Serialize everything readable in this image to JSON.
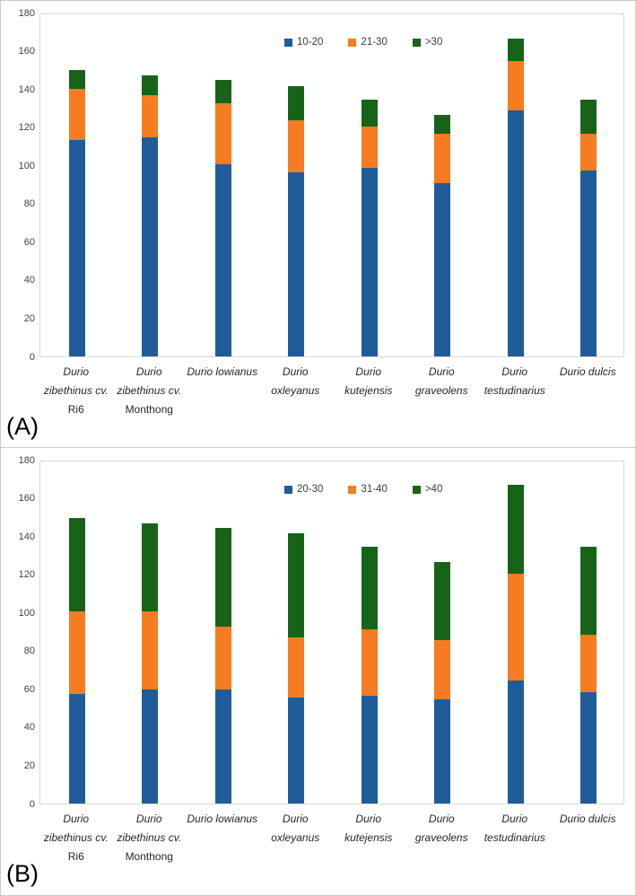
{
  "colors": {
    "series_blue": "#1f5c99",
    "series_orange": "#f57c21",
    "series_green": "#176418",
    "plot_border": "#d9d9d9",
    "outer_border": "#c9c9c9",
    "tick_text": "#404040",
    "category_text": "#262626"
  },
  "chart_data": [
    {
      "type": "bar",
      "stacked": true,
      "panel_label": "(A)",
      "title": "",
      "xlabel": "",
      "ylabel": "",
      "ylim": [
        0,
        180
      ],
      "ytick_step": 20,
      "grid": false,
      "legend_position": "inside-top-center",
      "categories": [
        "Durio zibethinus cv. Ri6",
        "Durio zibethinus cv. Monthong",
        "Durio lowianus",
        "Durio oxleyanus",
        "Durio kutejensis",
        "Durio graveolens",
        "Durio testudinarius",
        "Durio dulcis"
      ],
      "category_label_lines": [
        [
          {
            "text": "Durio",
            "italic": true
          },
          {
            "text": "zibethinus cv.",
            "italic": true
          },
          {
            "text": "Ri6",
            "italic": false
          }
        ],
        [
          {
            "text": "Durio",
            "italic": true
          },
          {
            "text": "zibethinus cv.",
            "italic": true
          },
          {
            "text": "Monthong",
            "italic": false
          }
        ],
        [
          {
            "text": "Durio lowianus",
            "italic": true
          }
        ],
        [
          {
            "text": "Durio",
            "italic": true
          },
          {
            "text": "oxleyanus",
            "italic": true
          }
        ],
        [
          {
            "text": "Durio",
            "italic": true
          },
          {
            "text": "kutejensis",
            "italic": true
          }
        ],
        [
          {
            "text": "Durio",
            "italic": true
          },
          {
            "text": "graveolens",
            "italic": true
          }
        ],
        [
          {
            "text": "Durio",
            "italic": true
          },
          {
            "text": "testudinarius",
            "italic": true
          }
        ],
        [
          {
            "text": "Durio dulcis",
            "italic": true
          }
        ]
      ],
      "series": [
        {
          "name": "10-20",
          "color": "#1f5c99",
          "values": [
            113.5,
            114.5,
            100.5,
            96.5,
            98.5,
            90.5,
            129,
            97.5
          ]
        },
        {
          "name": "21-30",
          "color": "#f57c21",
          "values": [
            26.5,
            22.5,
            32,
            27,
            22,
            26,
            25.5,
            19
          ]
        },
        {
          "name": ">30",
          "color": "#176418",
          "values": [
            10,
            10,
            12.5,
            18,
            14,
            10,
            12,
            18
          ]
        }
      ]
    },
    {
      "type": "bar",
      "stacked": true,
      "panel_label": "(B)",
      "title": "",
      "xlabel": "",
      "ylabel": "",
      "ylim": [
        0,
        180
      ],
      "ytick_step": 20,
      "grid": false,
      "legend_position": "inside-top-center",
      "categories": [
        "Durio zibethinus cv. Ri6",
        "Durio zibethinus cv. Monthong",
        "Durio lowianus",
        "Durio oxleyanus",
        "Durio kutejensis",
        "Durio graveolens",
        "Durio testudinarius",
        "Durio dulcis"
      ],
      "category_label_lines": [
        [
          {
            "text": "Durio",
            "italic": true
          },
          {
            "text": "zibethinus cv.",
            "italic": true
          },
          {
            "text": "Ri6",
            "italic": false
          }
        ],
        [
          {
            "text": "Durio",
            "italic": true
          },
          {
            "text": "zibethinus cv.",
            "italic": true
          },
          {
            "text": "Monthong",
            "italic": false
          }
        ],
        [
          {
            "text": "Durio lowianus",
            "italic": true
          }
        ],
        [
          {
            "text": "Durio",
            "italic": true
          },
          {
            "text": "oxleyanus",
            "italic": true
          }
        ],
        [
          {
            "text": "Durio",
            "italic": true
          },
          {
            "text": "kutejensis",
            "italic": true
          }
        ],
        [
          {
            "text": "Durio",
            "italic": true
          },
          {
            "text": "graveolens",
            "italic": true
          }
        ],
        [
          {
            "text": "Durio",
            "italic": true
          },
          {
            "text": "testudinarius",
            "italic": true
          }
        ],
        [
          {
            "text": "Durio dulcis",
            "italic": true
          }
        ]
      ],
      "series": [
        {
          "name": "20-30",
          "color": "#1f5c99",
          "values": [
            57.5,
            59.5,
            59.5,
            55.5,
            56.5,
            54.5,
            64.5,
            58.5
          ]
        },
        {
          "name": "31-40",
          "color": "#f57c21",
          "values": [
            43,
            41,
            33,
            31.5,
            34.5,
            31,
            56,
            30
          ]
        },
        {
          "name": ">40",
          "color": "#176418",
          "values": [
            49,
            46,
            52,
            54.5,
            43.5,
            41,
            46.5,
            46
          ]
        }
      ]
    }
  ]
}
